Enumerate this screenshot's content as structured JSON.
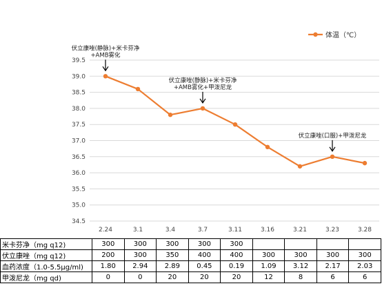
{
  "chart_data": {
    "type": "line",
    "title": "",
    "xlabel": "",
    "ylabel": "",
    "categories": [
      "2.24",
      "3.1",
      "3.4",
      "3.7",
      "3.11",
      "3.16",
      "3.21",
      "3.23",
      "3.28"
    ],
    "series": [
      {
        "name": "体温（℃）",
        "values": [
          39.0,
          38.6,
          37.8,
          38.0,
          37.5,
          36.8,
          36.2,
          36.5,
          36.3
        ],
        "color": "#ED7D31"
      }
    ],
    "ylim": [
      34.5,
      39.5
    ],
    "yticks": [
      "39.5",
      "39.0",
      "38.5",
      "38.0",
      "37.5",
      "37.0",
      "36.5",
      "36.0",
      "35.5",
      "35.0",
      "34.5"
    ],
    "grid": true,
    "legend_position": "top-right",
    "annotations": [
      {
        "lines": [
          "伏立康唑(静脉)+米卡芬净",
          "+AMB雾化"
        ],
        "category_index": 0
      },
      {
        "lines": [
          "伏立康唑(静脉)+米卡芬净",
          "+AMB雾化+甲泼尼龙"
        ],
        "category_index": 3
      },
      {
        "lines": [
          "伏立康唑(口服)+甲泼尼龙"
        ],
        "category_index": 7
      }
    ]
  },
  "table": {
    "rows": [
      {
        "label": "米卡芬净（mg q12)",
        "cells": [
          "300",
          "300",
          "300",
          "300",
          "300",
          "",
          "",
          "",
          ""
        ]
      },
      {
        "label": "伏立康唑（mg q12)",
        "cells": [
          "200",
          "300",
          "350",
          "400",
          "400",
          "300",
          "300",
          "300",
          "300"
        ]
      },
      {
        "label": "血药浓度（1.0-5.5μg/ml)",
        "cells": [
          "1.80",
          "2.94",
          "2.89",
          "0.45",
          "0.19",
          "1.09",
          "3.12",
          "2.17",
          "2.03"
        ]
      },
      {
        "label": "甲泼尼龙（mg qd)",
        "cells": [
          "0",
          "0",
          "20",
          "20",
          "20",
          "12",
          "8",
          "6",
          "6"
        ]
      }
    ]
  }
}
